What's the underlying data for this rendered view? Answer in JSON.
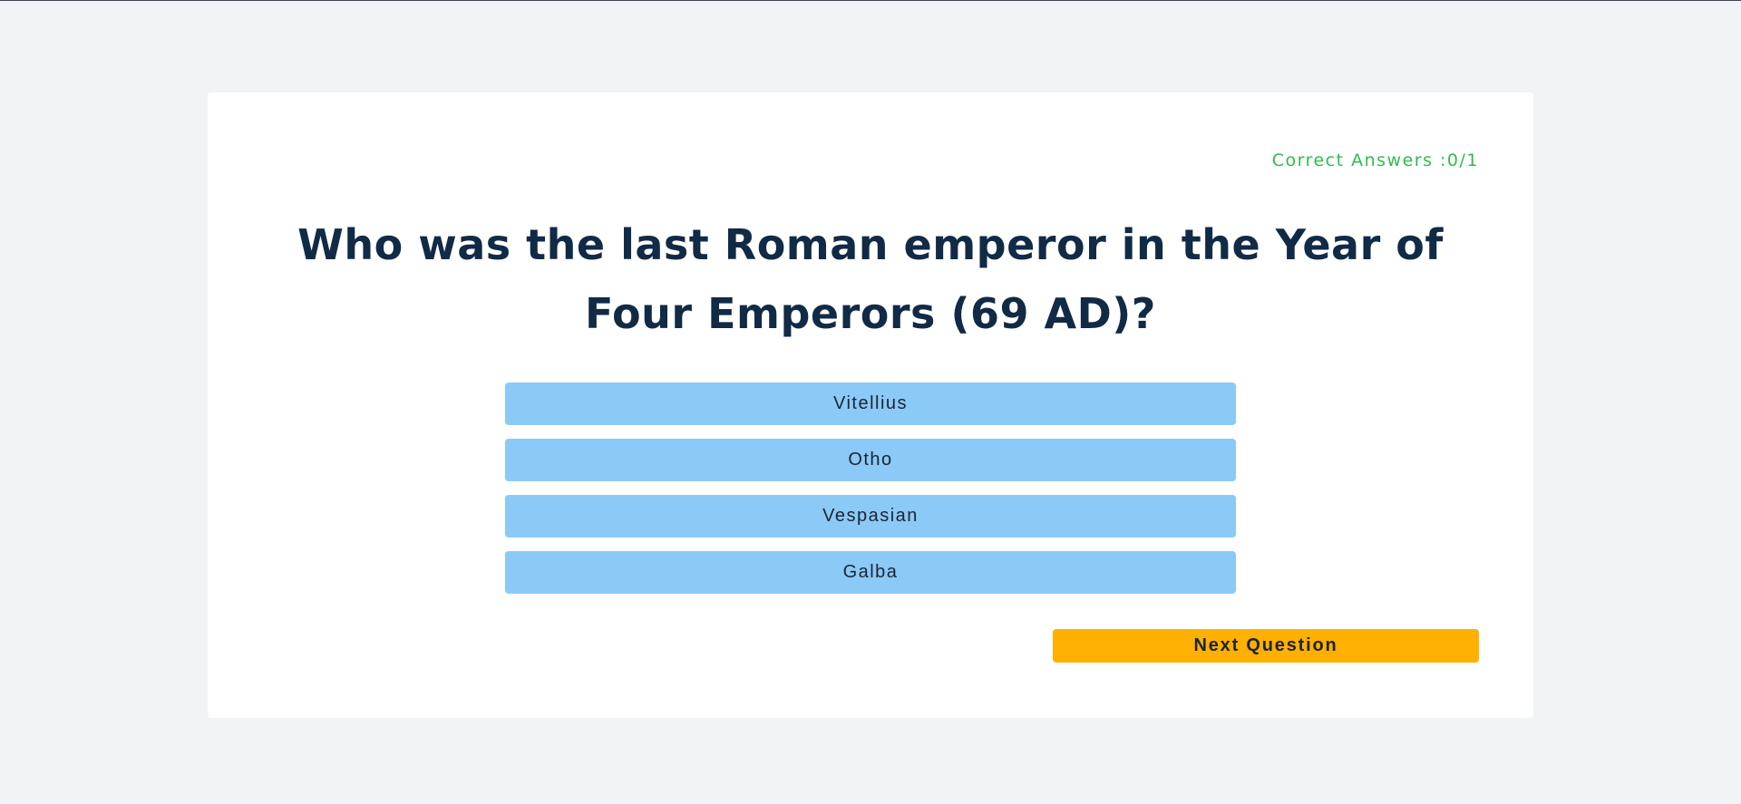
{
  "quiz": {
    "score_text": "Correct Answers :0/1",
    "question": "Who was the last Roman emperor in the Year of Four Emperors (69 AD)?",
    "answers": [
      {
        "label": "Vitellius"
      },
      {
        "label": "Otho"
      },
      {
        "label": "Vespasian"
      },
      {
        "label": "Galba"
      }
    ],
    "next_label": "Next Question"
  },
  "colors": {
    "background": "#f0f4f7",
    "card": "#ffffff",
    "score": "#2ebd4c",
    "question": "#112a46",
    "answer_button": "#8bcaf6",
    "next_button": "#ffb000"
  }
}
